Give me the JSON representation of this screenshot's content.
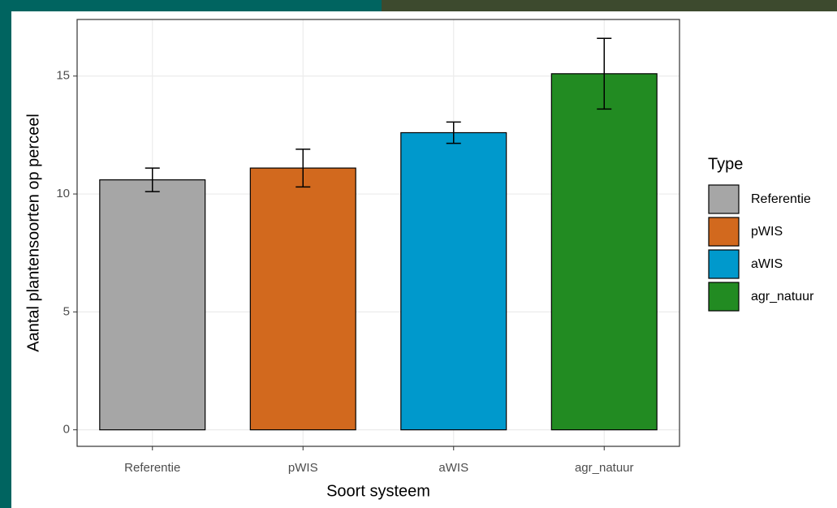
{
  "chart_data": {
    "type": "bar",
    "x_label": "Soort systeem",
    "y_label": "Aantal plantensoorten op perceel",
    "categories": [
      "Referentie",
      "pWIS",
      "aWIS",
      "agr_natuur"
    ],
    "values": [
      10.6,
      11.1,
      12.6,
      15.1
    ],
    "errors": [
      0.5,
      0.8,
      0.45,
      1.5
    ],
    "colors": [
      "#a6a6a6",
      "#d2691e",
      "#0099cc",
      "#228b22"
    ],
    "ylim": [
      -0.7,
      17.4
    ],
    "yticks": [
      0,
      5,
      10,
      15
    ],
    "grid": true,
    "legend": {
      "title": "Type",
      "position": "right"
    }
  }
}
